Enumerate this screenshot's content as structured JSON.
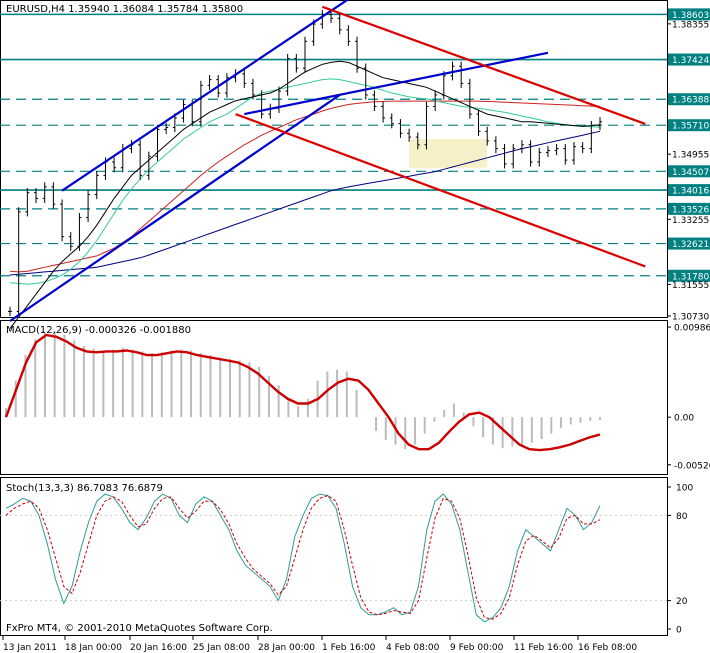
{
  "header": {
    "title": "EURUSD,H4  1.35940 1.36084 1.35784 1.35800",
    "macd_title": "MACD(12,26,9) -0.000326 -0.001880",
    "stoch_title": "Stoch(13,3,3) 86.7083 76.6879",
    "copyright": "FxPro MT4, © 2001-2010 MetaQuotes Software Corp."
  },
  "colors": {
    "blue_channel": "#0000cc",
    "red_channel": "#dd0000",
    "level_line": "#008080",
    "price_label_bg": "#008080",
    "sma_black": "#000000",
    "ma_teal": "#33cc99",
    "ma_red": "#cc2222",
    "ma_navy": "#000080",
    "macd_signal": "#cc0000",
    "stoch_main": "#339999",
    "stoch_signal": "#cc0000",
    "highlight_box": "#f5f0c8"
  },
  "chart_data": [
    {
      "type": "line",
      "name": "price",
      "ylim": [
        1.3073,
        1.389
      ],
      "price_labels": [
        "1.38603",
        "1.38355",
        "1.37424",
        "1.36388",
        "1.35710",
        "1.34955",
        "1.34507",
        "1.34016",
        "1.33526",
        "1.33255",
        "1.32621",
        "1.31780",
        "1.31555",
        "1.30730"
      ],
      "levels": [
        {
          "value": 1.38603,
          "label": "1.38603",
          "style": "solid"
        },
        {
          "value": 1.37424,
          "label": "1.37424",
          "style": "solid"
        },
        {
          "value": 1.36388,
          "label": "1.36388",
          "style": "dashed"
        },
        {
          "value": 1.3571,
          "label": "1.35710",
          "style": "dashed"
        },
        {
          "value": 1.34507,
          "label": "1.34507",
          "style": "dashed"
        },
        {
          "value": 1.34016,
          "label": "1.34016",
          "style": "solid"
        },
        {
          "value": 1.33526,
          "label": "1.33526",
          "style": "dashed"
        },
        {
          "value": 1.32621,
          "label": "1.32621",
          "style": "dashed"
        },
        {
          "value": 1.3178,
          "label": "1.31780",
          "style": "dashed"
        }
      ],
      "ticks": [
        {
          "value": 1.38355,
          "label": "1.38355"
        },
        {
          "value": 1.34955,
          "label": "1.34955"
        },
        {
          "value": 1.33255,
          "label": "1.33255"
        },
        {
          "value": 1.31555,
          "label": "1.31555"
        },
        {
          "value": 1.3073,
          "label": "1.30730"
        }
      ],
      "close": [
        1.3085,
        1.3345,
        1.3395,
        1.338,
        1.341,
        1.3365,
        1.328,
        1.3255,
        1.333,
        1.339,
        1.344,
        1.3475,
        1.346,
        1.351,
        1.352,
        1.344,
        1.349,
        1.356,
        1.3565,
        1.359,
        1.3625,
        1.358,
        1.3675,
        1.369,
        1.3655,
        1.3695,
        1.3705,
        1.368,
        1.365,
        1.36,
        1.3615,
        1.366,
        1.3745,
        1.372,
        1.379,
        1.3835,
        1.386,
        1.385,
        1.382,
        1.379,
        1.372,
        1.365,
        1.362,
        1.359,
        1.3575,
        1.355,
        1.354,
        1.352,
        1.362,
        1.365,
        1.37,
        1.3725,
        1.368,
        1.36,
        1.3555,
        1.353,
        1.351,
        1.347,
        1.351,
        1.352,
        1.3475,
        1.35,
        1.3505,
        1.351,
        1.348,
        1.3515,
        1.351,
        1.357,
        1.358
      ],
      "ma_black": [
        1.304,
        1.307,
        1.31,
        1.313,
        1.316,
        1.319,
        1.3215,
        1.3235,
        1.3255,
        1.328,
        1.331,
        1.3345,
        1.338,
        1.341,
        1.344,
        1.346,
        1.348,
        1.35,
        1.352,
        1.354,
        1.356,
        1.3575,
        1.359,
        1.3605,
        1.3615,
        1.3625,
        1.3635,
        1.364,
        1.3645,
        1.365,
        1.3655,
        1.3665,
        1.368,
        1.3695,
        1.371,
        1.372,
        1.373,
        1.3735,
        1.3738,
        1.3735,
        1.3725,
        1.3715,
        1.3705,
        1.3695,
        1.369,
        1.3685,
        1.368,
        1.3675,
        1.367,
        1.366,
        1.365,
        1.364,
        1.363,
        1.362,
        1.361,
        1.36,
        1.3595,
        1.359,
        1.3585,
        1.358,
        1.358,
        1.3578,
        1.3576,
        1.3574,
        1.3572,
        1.357,
        1.3568,
        1.357,
        1.3572
      ],
      "ma_teal": [
        1.316,
        1.3158,
        1.3156,
        1.3158,
        1.3162,
        1.317,
        1.318,
        1.3195,
        1.3215,
        1.324,
        1.327,
        1.3305,
        1.334,
        1.3375,
        1.3405,
        1.343,
        1.3455,
        1.3475,
        1.3495,
        1.3515,
        1.3535,
        1.355,
        1.3565,
        1.358,
        1.359,
        1.36,
        1.3615,
        1.363,
        1.3645,
        1.3655,
        1.366,
        1.3665,
        1.367,
        1.3675,
        1.368,
        1.3685,
        1.369,
        1.3692,
        1.369,
        1.3685,
        1.368,
        1.3675,
        1.367,
        1.3662,
        1.3655,
        1.365,
        1.3645,
        1.3642,
        1.364,
        1.3635,
        1.363,
        1.3625,
        1.362,
        1.3618,
        1.3615,
        1.3612,
        1.3608,
        1.3605,
        1.36,
        1.3595,
        1.359,
        1.3585,
        1.358,
        1.3576,
        1.3572,
        1.357,
        1.3568,
        1.3567,
        1.3566
      ],
      "ma_red": [
        1.319,
        1.3188,
        1.319,
        1.3195,
        1.32,
        1.3205,
        1.321,
        1.3215,
        1.322,
        1.3225,
        1.323,
        1.324,
        1.325,
        1.3265,
        1.328,
        1.33,
        1.332,
        1.334,
        1.336,
        1.338,
        1.34,
        1.342,
        1.344,
        1.3458,
        1.3475,
        1.349,
        1.3505,
        1.352,
        1.3532,
        1.3545,
        1.3555,
        1.3565,
        1.3575,
        1.3585,
        1.3593,
        1.36,
        1.3608,
        1.3615,
        1.362,
        1.3625,
        1.3628,
        1.363,
        1.3632,
        1.3633,
        1.3634,
        1.3634,
        1.3634,
        1.3634,
        1.3634,
        1.3634,
        1.3634,
        1.3634,
        1.3634,
        1.3634,
        1.3634,
        1.3633,
        1.3632,
        1.3631,
        1.363,
        1.3629,
        1.3628,
        1.3627,
        1.3626,
        1.3625,
        1.3624,
        1.3623,
        1.3622,
        1.3621,
        1.362
      ],
      "ma_navy": [
        1.318,
        1.3182,
        1.3184,
        1.3186,
        1.3188,
        1.319,
        1.3192,
        1.3194,
        1.3196,
        1.3198,
        1.32,
        1.3205,
        1.321,
        1.3215,
        1.322,
        1.3225,
        1.3232,
        1.324,
        1.3248,
        1.3256,
        1.3264,
        1.3272,
        1.328,
        1.3288,
        1.3296,
        1.3304,
        1.3312,
        1.332,
        1.3328,
        1.3336,
        1.3344,
        1.3352,
        1.336,
        1.3368,
        1.3376,
        1.3384,
        1.3392,
        1.34,
        1.3405,
        1.341,
        1.3414,
        1.3418,
        1.3422,
        1.3426,
        1.343,
        1.3434,
        1.3438,
        1.3442,
        1.3446,
        1.345,
        1.3456,
        1.3462,
        1.3468,
        1.3474,
        1.348,
        1.3486,
        1.3492,
        1.3498,
        1.3504,
        1.351,
        1.3515,
        1.352,
        1.3525,
        1.353,
        1.3535,
        1.354,
        1.3545,
        1.355,
        1.3555
      ],
      "blue_channel": [
        {
          "from": [
            0,
            1.306
          ],
          "to": [
            38,
            1.365
          ]
        },
        {
          "from": [
            6,
            1.34
          ],
          "to": [
            39,
            1.39
          ]
        },
        {
          "from": [
            27,
            1.36
          ],
          "to": [
            62,
            1.376
          ]
        }
      ],
      "red_channel": [
        {
          "from": [
            36,
            1.388
          ],
          "to": [
            64,
            1.365
          ]
        },
        {
          "from": [
            26,
            1.36
          ],
          "to": [
            64,
            1.328
          ]
        }
      ],
      "highlight": {
        "from": [
          46,
          1.3535
        ],
        "to": [
          55,
          1.346
        ]
      }
    },
    {
      "type": "bar",
      "name": "MACD",
      "ylim": [
        -0.006,
        0.0102
      ],
      "ticks": [
        {
          "value": 0.009864,
          "label": "0.009864"
        },
        {
          "value": 0,
          "label": "0.00"
        },
        {
          "value": -0.005208,
          "label": "-0.005208"
        }
      ],
      "histogram": [
        0.001,
        0.004,
        0.0068,
        0.0085,
        0.0092,
        0.0094,
        0.009,
        0.0084,
        0.0078,
        0.0075,
        0.0073,
        0.0074,
        0.0076,
        0.0074,
        0.0072,
        0.007,
        0.0071,
        0.0073,
        0.0074,
        0.0073,
        0.007,
        0.0068,
        0.0065,
        0.0064,
        0.0062,
        0.006,
        0.0055,
        0.0045,
        0.0035,
        0.002,
        0.0012,
        0.002,
        0.004,
        0.005,
        0.0052,
        0.005,
        0.003,
        0.0,
        -0.0015,
        -0.0025,
        -0.003,
        -0.0035,
        -0.003,
        -0.0018,
        -0.0005,
        0.0008,
        0.0015,
        0.0005,
        -0.001,
        -0.0022,
        -0.003,
        -0.0034,
        -0.0032,
        -0.003,
        -0.0028,
        -0.0024,
        -0.0018,
        -0.0012,
        -0.0008,
        -0.0006,
        -0.0004,
        -0.0003
      ],
      "signal": [
        0.0,
        0.003,
        0.006,
        0.0082,
        0.009,
        0.0088,
        0.0083,
        0.0076,
        0.0072,
        0.0071,
        0.0072,
        0.0072,
        0.0073,
        0.0071,
        0.0068,
        0.0068,
        0.007,
        0.0072,
        0.0071,
        0.0068,
        0.0066,
        0.0064,
        0.0062,
        0.006,
        0.0055,
        0.0048,
        0.0038,
        0.0028,
        0.002,
        0.0015,
        0.0015,
        0.002,
        0.003,
        0.0038,
        0.0042,
        0.004,
        0.003,
        0.0015,
        0.0,
        -0.0018,
        -0.003,
        -0.0035,
        -0.0035,
        -0.0028,
        -0.0016,
        -0.0005,
        0.0003,
        0.0005,
        0.0,
        -0.001,
        -0.002,
        -0.003,
        -0.0035,
        -0.0036,
        -0.0035,
        -0.0033,
        -0.003,
        -0.0026,
        -0.0022,
        -0.0019
      ]
    },
    {
      "type": "line",
      "name": "Stochastic",
      "ylim": [
        0,
        100
      ],
      "ticks": [
        {
          "value": 100,
          "label": "100"
        },
        {
          "value": 80,
          "label": "80"
        },
        {
          "value": 20,
          "label": "20"
        },
        {
          "value": 0,
          "label": "0"
        }
      ],
      "main": [
        85,
        88,
        92,
        90,
        80,
        60,
        35,
        18,
        30,
        55,
        75,
        90,
        95,
        93,
        85,
        75,
        70,
        78,
        90,
        95,
        92,
        80,
        75,
        88,
        93,
        90,
        80,
        70,
        55,
        45,
        40,
        35,
        30,
        20,
        35,
        65,
        80,
        92,
        95,
        94,
        85,
        60,
        30,
        15,
        10,
        10,
        12,
        15,
        10,
        12,
        30,
        70,
        90,
        95,
        88,
        70,
        40,
        10,
        5,
        8,
        15,
        30,
        55,
        70,
        65,
        60,
        55,
        70,
        85,
        80,
        70,
        75,
        87
      ],
      "signal": [
        80,
        85,
        88,
        90,
        85,
        70,
        50,
        30,
        25,
        40,
        60,
        80,
        90,
        93,
        90,
        80,
        72,
        74,
        85,
        92,
        93,
        85,
        78,
        83,
        90,
        90,
        84,
        74,
        60,
        50,
        42,
        37,
        32,
        24,
        30,
        50,
        70,
        85,
        92,
        94,
        90,
        70,
        45,
        22,
        12,
        10,
        11,
        13,
        12,
        11,
        20,
        50,
        78,
        92,
        90,
        78,
        52,
        22,
        8,
        7,
        11,
        22,
        45,
        62,
        66,
        62,
        57,
        64,
        78,
        80,
        74,
        74,
        77
      ]
    }
  ],
  "x_axis": {
    "labels": [
      "13 Jan 2011",
      "18 Jan 00:00",
      "20 Jan 16:00",
      "25 Jan 08:00",
      "28 Jan 00:00",
      "1 Feb 16:00",
      "4 Feb 08:00",
      "9 Feb 00:00",
      "11 Feb 16:00",
      "16 Feb 08:00"
    ]
  }
}
